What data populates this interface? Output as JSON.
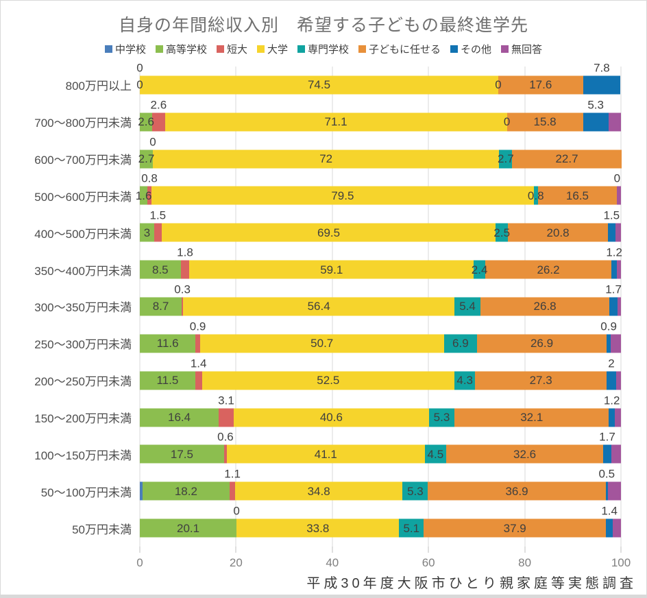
{
  "title": "自身の年間総収入別　希望する子どもの最終進学先",
  "caption": "平成30年度大阪市ひとり親家庭等実態調査",
  "chart_data": {
    "type": "bar",
    "orientation": "horizontal",
    "stacked": true,
    "grid": true,
    "legend_position": "top",
    "xlim": [
      0,
      100
    ],
    "x_ticks": [
      0,
      20,
      40,
      60,
      80,
      100
    ],
    "series_names": [
      "中学校",
      "高等学校",
      "短大",
      "大学",
      "専門学校",
      "子どもに任せる",
      "その他",
      "無回答"
    ],
    "series_colors": [
      "#4a7ebb",
      "#8cbe4f",
      "#d9635f",
      "#f6d42c",
      "#10a3a0",
      "#e8903a",
      "#1173b2",
      "#a3559c"
    ],
    "categories": [
      "800万円以上",
      "700～800万円未満",
      "600～700万円未満",
      "500～600万円未満",
      "400～500万円未満",
      "350～400万円未満",
      "300～350万円未満",
      "250～300万円未満",
      "200～250万円未満",
      "150～200万円未満",
      "100～150万円未満",
      "50～100万円未満",
      "50万円未満"
    ],
    "rows": [
      {
        "category": "800万円以上",
        "values": [
          0,
          0,
          0,
          74.5,
          0,
          17.6,
          7.8,
          0
        ],
        "labels": [
          {
            "si": 1,
            "text": "0",
            "pos": "in"
          },
          {
            "si": 2,
            "text": "0",
            "pos": "above"
          },
          {
            "si": 3,
            "text": "74.5",
            "pos": "in"
          },
          {
            "si": 4,
            "text": "0",
            "pos": "in"
          },
          {
            "si": 5,
            "text": "17.6",
            "pos": "in"
          },
          {
            "si": 6,
            "text": "7.8",
            "pos": "above"
          }
        ]
      },
      {
        "category": "700～800万円未満",
        "values": [
          0,
          2.6,
          2.6,
          71.1,
          0,
          15.8,
          5.3,
          2.6
        ],
        "labels": [
          {
            "si": 1,
            "text": "2.6",
            "pos": "in"
          },
          {
            "si": 2,
            "text": "2.6",
            "pos": "above"
          },
          {
            "si": 3,
            "text": "71.1",
            "pos": "in"
          },
          {
            "si": 4,
            "text": "0",
            "pos": "in"
          },
          {
            "si": 5,
            "text": "15.8",
            "pos": "in"
          },
          {
            "si": 6,
            "text": "5.3",
            "pos": "above"
          }
        ]
      },
      {
        "category": "600～700万円未満",
        "values": [
          0,
          2.7,
          0,
          72,
          2.7,
          22.7,
          0,
          0
        ],
        "labels": [
          {
            "si": 1,
            "text": "2.7",
            "pos": "in"
          },
          {
            "si": 2,
            "text": "0",
            "pos": "above"
          },
          {
            "si": 3,
            "text": "72",
            "pos": "in"
          },
          {
            "si": 4,
            "text": "2.7",
            "pos": "in"
          },
          {
            "si": 5,
            "text": "22.7",
            "pos": "in"
          }
        ]
      },
      {
        "category": "500～600万円未満",
        "values": [
          0,
          1.6,
          0.8,
          79.5,
          0.8,
          16.5,
          0,
          0.8
        ],
        "labels": [
          {
            "si": 1,
            "text": "1.6",
            "pos": "in"
          },
          {
            "si": 2,
            "text": "0.8",
            "pos": "above"
          },
          {
            "si": 3,
            "text": "79.5",
            "pos": "in"
          },
          {
            "si": 4,
            "text": "0.8",
            "pos": "in"
          },
          {
            "si": 5,
            "text": "16.5",
            "pos": "in"
          },
          {
            "si": 6,
            "text": "0",
            "pos": "above"
          }
        ]
      },
      {
        "category": "400～500万円未満",
        "values": [
          0,
          3,
          1.5,
          69.5,
          2.5,
          20.8,
          1.5,
          1.2
        ],
        "labels": [
          {
            "si": 1,
            "text": "3",
            "pos": "in"
          },
          {
            "si": 2,
            "text": "1.5",
            "pos": "above"
          },
          {
            "si": 3,
            "text": "69.5",
            "pos": "in"
          },
          {
            "si": 4,
            "text": "2.5",
            "pos": "in"
          },
          {
            "si": 5,
            "text": "20.8",
            "pos": "in"
          },
          {
            "si": 6,
            "text": "1.5",
            "pos": "above"
          }
        ]
      },
      {
        "category": "350～400万円未満",
        "values": [
          0,
          8.5,
          1.8,
          59.1,
          2.4,
          26.2,
          1.2,
          0.8
        ],
        "labels": [
          {
            "si": 1,
            "text": "8.5",
            "pos": "in"
          },
          {
            "si": 2,
            "text": "1.8",
            "pos": "above"
          },
          {
            "si": 3,
            "text": "59.1",
            "pos": "in"
          },
          {
            "si": 4,
            "text": "2.4",
            "pos": "in"
          },
          {
            "si": 5,
            "text": "26.2",
            "pos": "in"
          },
          {
            "si": 6,
            "text": "1.2",
            "pos": "above"
          }
        ]
      },
      {
        "category": "300～350万円未満",
        "values": [
          0,
          8.7,
          0.3,
          56.4,
          5.4,
          26.8,
          1.7,
          0.7
        ],
        "labels": [
          {
            "si": 1,
            "text": "8.7",
            "pos": "in"
          },
          {
            "si": 2,
            "text": "0.3",
            "pos": "above"
          },
          {
            "si": 3,
            "text": "56.4",
            "pos": "in"
          },
          {
            "si": 4,
            "text": "5.4",
            "pos": "in"
          },
          {
            "si": 5,
            "text": "26.8",
            "pos": "in"
          },
          {
            "si": 6,
            "text": "1.7",
            "pos": "above"
          }
        ]
      },
      {
        "category": "250～300万円未満",
        "values": [
          0,
          11.6,
          0.9,
          50.7,
          6.9,
          26.9,
          0.9,
          2.1
        ],
        "labels": [
          {
            "si": 1,
            "text": "11.6",
            "pos": "in"
          },
          {
            "si": 2,
            "text": "0.9",
            "pos": "above"
          },
          {
            "si": 3,
            "text": "50.7",
            "pos": "in"
          },
          {
            "si": 4,
            "text": "6.9",
            "pos": "in"
          },
          {
            "si": 5,
            "text": "26.9",
            "pos": "in"
          },
          {
            "si": 6,
            "text": "0.9",
            "pos": "above"
          }
        ]
      },
      {
        "category": "200～250万円未満",
        "values": [
          0,
          11.5,
          1.4,
          52.5,
          4.3,
          27.3,
          2,
          1
        ],
        "labels": [
          {
            "si": 1,
            "text": "11.5",
            "pos": "in"
          },
          {
            "si": 2,
            "text": "1.4",
            "pos": "above"
          },
          {
            "si": 3,
            "text": "52.5",
            "pos": "in"
          },
          {
            "si": 4,
            "text": "4.3",
            "pos": "in"
          },
          {
            "si": 5,
            "text": "27.3",
            "pos": "in"
          },
          {
            "si": 6,
            "text": "2",
            "pos": "above"
          }
        ]
      },
      {
        "category": "150～200万円未満",
        "values": [
          0,
          16.4,
          3.1,
          40.6,
          5.3,
          32.1,
          1.2,
          1.3
        ],
        "labels": [
          {
            "si": 1,
            "text": "16.4",
            "pos": "in"
          },
          {
            "si": 2,
            "text": "3.1",
            "pos": "above"
          },
          {
            "si": 3,
            "text": "40.6",
            "pos": "in"
          },
          {
            "si": 4,
            "text": "5.3",
            "pos": "in"
          },
          {
            "si": 5,
            "text": "32.1",
            "pos": "in"
          },
          {
            "si": 6,
            "text": "1.2",
            "pos": "above"
          }
        ]
      },
      {
        "category": "100～150万円未満",
        "values": [
          0,
          17.5,
          0.6,
          41.1,
          4.5,
          32.6,
          1.7,
          2
        ],
        "labels": [
          {
            "si": 1,
            "text": "17.5",
            "pos": "in"
          },
          {
            "si": 2,
            "text": "0.6",
            "pos": "above"
          },
          {
            "si": 3,
            "text": "41.1",
            "pos": "in"
          },
          {
            "si": 4,
            "text": "4.5",
            "pos": "in"
          },
          {
            "si": 5,
            "text": "32.6",
            "pos": "in"
          },
          {
            "si": 6,
            "text": "1.7",
            "pos": "above"
          }
        ]
      },
      {
        "category": "50～100万円未満",
        "values": [
          0.5,
          18.2,
          1.1,
          34.8,
          5.3,
          36.9,
          0.5,
          2.7
        ],
        "labels": [
          {
            "si": 1,
            "text": "18.2",
            "pos": "in"
          },
          {
            "si": 2,
            "text": "1.1",
            "pos": "above"
          },
          {
            "si": 3,
            "text": "34.8",
            "pos": "in"
          },
          {
            "si": 4,
            "text": "5.3",
            "pos": "in"
          },
          {
            "si": 5,
            "text": "36.9",
            "pos": "in"
          },
          {
            "si": 6,
            "text": "0.5",
            "pos": "above"
          }
        ]
      },
      {
        "category": "50万円未満",
        "values": [
          0,
          20.1,
          0,
          33.8,
          5.1,
          37.9,
          1.4,
          1.7
        ],
        "labels": [
          {
            "si": 1,
            "text": "20.1",
            "pos": "in"
          },
          {
            "si": 2,
            "text": "0",
            "pos": "above"
          },
          {
            "si": 3,
            "text": "33.8",
            "pos": "in"
          },
          {
            "si": 4,
            "text": "5.1",
            "pos": "in"
          },
          {
            "si": 5,
            "text": "37.9",
            "pos": "in"
          },
          {
            "si": 6,
            "text": "1.4",
            "pos": "above"
          }
        ]
      }
    ]
  }
}
